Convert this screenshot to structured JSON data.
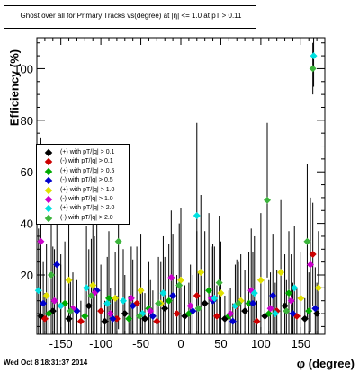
{
  "title": "Ghost over all for Primary Tracks vs(degree) at |η| <= 1.0 at pT > 0.11",
  "date": "Wed Oct  8 18:31:37 2014",
  "chart_data": {
    "type": "scatter",
    "title": "Ghost over all for Primary Tracks vs(degree) at |η| <= 1.0 at pT > 0.11",
    "xlabel": "φ (degree)",
    "ylabel": "Efficiency (%)",
    "xlim": [
      -180,
      180
    ],
    "ylim": [
      -3,
      112
    ],
    "xticks": [
      -150,
      -100,
      -50,
      0,
      50,
      100,
      150
    ],
    "yticks": [
      20,
      40,
      60,
      80,
      100
    ],
    "grid": false,
    "legend_position": "left-center",
    "series": [
      {
        "name": "(+) with pT/|q| > 0.1",
        "color": "#000000",
        "points": [
          [
            -175,
            4
          ],
          [
            -160,
            6
          ],
          [
            -140,
            3
          ],
          [
            -115,
            8
          ],
          [
            -95,
            2
          ],
          [
            -70,
            5
          ],
          [
            -45,
            3
          ],
          [
            -20,
            7
          ],
          [
            5,
            4
          ],
          [
            30,
            9
          ],
          [
            55,
            3
          ],
          [
            80,
            6
          ],
          [
            105,
            4
          ],
          [
            130,
            8
          ],
          [
            155,
            3
          ],
          [
            170,
            5
          ]
        ],
        "errors": [
          18,
          25,
          12,
          22,
          8,
          15,
          10,
          20,
          12,
          28,
          9,
          16,
          14,
          20,
          8,
          12
        ]
      },
      {
        "name": "(-) with pT/|q| > 0.1",
        "color": "#cc0000",
        "points": [
          [
            -170,
            3
          ],
          [
            -150,
            8
          ],
          [
            -125,
            2
          ],
          [
            -100,
            6
          ],
          [
            -80,
            3
          ],
          [
            -55,
            9
          ],
          [
            -30,
            2
          ],
          [
            -5,
            5
          ],
          [
            20,
            12
          ],
          [
            45,
            4
          ],
          [
            70,
            8
          ],
          [
            95,
            2
          ],
          [
            120,
            6
          ],
          [
            145,
            4
          ],
          [
            165,
            28
          ]
        ],
        "errors": [
          10,
          20,
          8,
          18,
          9,
          22,
          7,
          15,
          25,
          12,
          18,
          8,
          16,
          11,
          20
        ]
      },
      {
        "name": "(+) with pT/|q| > 0.5",
        "color": "#00aa00",
        "points": [
          [
            -165,
            5
          ],
          [
            -145,
            9
          ],
          [
            -120,
            4
          ],
          [
            -90,
            11
          ],
          [
            -65,
            3
          ],
          [
            -40,
            7
          ],
          [
            -15,
            10
          ],
          [
            10,
            5
          ],
          [
            35,
            14
          ],
          [
            60,
            4
          ],
          [
            85,
            9
          ],
          [
            110,
            5
          ],
          [
            135,
            13
          ],
          [
            160,
            6
          ]
        ],
        "errors": [
          14,
          24,
          11,
          26,
          9,
          18,
          22,
          12,
          30,
          10,
          20,
          13,
          24,
          15
        ]
      },
      {
        "name": "(-) with pT/|q| > 0.5",
        "color": "#0000cc",
        "points": [
          [
            -172,
            9
          ],
          [
            -155,
            24
          ],
          [
            -130,
            6
          ],
          [
            -105,
            14
          ],
          [
            -85,
            3
          ],
          [
            -60,
            8
          ],
          [
            -35,
            4
          ],
          [
            -10,
            12
          ],
          [
            15,
            6
          ],
          [
            40,
            10
          ],
          [
            65,
            2
          ],
          [
            90,
            9
          ],
          [
            115,
            12
          ],
          [
            140,
            5
          ],
          [
            168,
            7
          ]
        ],
        "errors": [
          16,
          28,
          12,
          26,
          8,
          18,
          10,
          24,
          14,
          22,
          7,
          20,
          24,
          12,
          16
        ]
      },
      {
        "name": "(+) with pT/|q| > 1.0",
        "color": "#e0e000",
        "points": [
          [
            -168,
            12
          ],
          [
            -140,
            18
          ],
          [
            -110,
            16
          ],
          [
            -82,
            11
          ],
          [
            -50,
            14
          ],
          [
            -25,
            9
          ],
          [
            0,
            18
          ],
          [
            25,
            21
          ],
          [
            50,
            13
          ],
          [
            75,
            10
          ],
          [
            100,
            18
          ],
          [
            125,
            21
          ],
          [
            150,
            11
          ],
          [
            172,
            15
          ]
        ],
        "errors": [
          20,
          26,
          24,
          18,
          22,
          16,
          28,
          30,
          20,
          18,
          26,
          28,
          18,
          22
        ]
      },
      {
        "name": "(-) with pT/|q| > 1.0",
        "color": "#cc00cc",
        "points": [
          [
            -175,
            33
          ],
          [
            -158,
            10
          ],
          [
            -135,
            7
          ],
          [
            -108,
            13
          ],
          [
            -88,
            5
          ],
          [
            -62,
            11
          ],
          [
            -38,
            6
          ],
          [
            -12,
            19
          ],
          [
            12,
            8
          ],
          [
            38,
            11
          ],
          [
            62,
            5
          ],
          [
            88,
            14
          ],
          [
            112,
            7
          ],
          [
            138,
            10
          ],
          [
            162,
            24
          ]
        ],
        "errors": [
          40,
          20,
          14,
          22,
          10,
          20,
          12,
          26,
          16,
          20,
          10,
          24,
          14,
          18,
          26
        ]
      },
      {
        "name": "(+) with pT/|q| > 2.0",
        "color": "#00e0e0",
        "points": [
          [
            -178,
            14
          ],
          [
            -150,
            8
          ],
          [
            -118,
            15
          ],
          [
            -92,
            9
          ],
          [
            -72,
            10
          ],
          [
            -48,
            5
          ],
          [
            -22,
            13
          ],
          [
            20,
            43
          ],
          [
            42,
            11
          ],
          [
            68,
            8
          ],
          [
            92,
            13
          ],
          [
            118,
            5
          ],
          [
            142,
            15
          ],
          [
            166,
            105
          ]
        ],
        "errors": [
          24,
          16,
          24,
          18,
          20,
          10,
          22,
          36,
          20,
          16,
          22,
          12,
          24,
          12
        ]
      },
      {
        "name": "(-) with pT/|q| > 2.0",
        "color": "#3cb43c",
        "points": [
          [
            -162,
            20
          ],
          [
            -138,
            6
          ],
          [
            -112,
            12
          ],
          [
            -78,
            33
          ],
          [
            -52,
            4
          ],
          [
            -28,
            9
          ],
          [
            -2,
            16
          ],
          [
            22,
            7
          ],
          [
            48,
            17
          ],
          [
            72,
            9
          ],
          [
            108,
            49
          ],
          [
            132,
            6
          ],
          [
            158,
            33
          ],
          [
            165,
            100
          ]
        ],
        "errors": [
          26,
          12,
          22,
          34,
          9,
          18,
          24,
          14,
          26,
          16,
          30,
          12,
          30,
          10
        ]
      }
    ]
  }
}
